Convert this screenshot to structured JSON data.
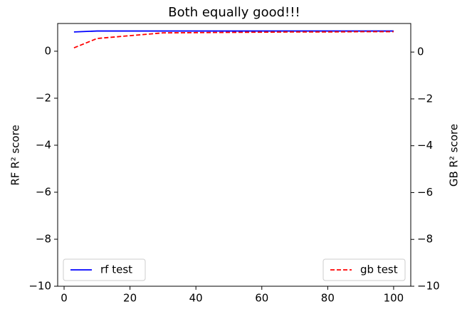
{
  "chart_data": {
    "type": "line",
    "title": "Both equally good!!!",
    "y_label": "RF R² score",
    "y2_label": "GB R² score",
    "x": [
      3,
      10,
      20,
      30,
      40,
      50,
      60,
      70,
      80,
      90,
      100
    ],
    "series": [
      {
        "name": "rf test",
        "color": "#0000ff",
        "linestyle": "solid",
        "axis": "y",
        "legend": "lower left",
        "values": [
          0.82,
          0.86,
          0.86,
          0.86,
          0.86,
          0.86,
          0.86,
          0.86,
          0.86,
          0.86,
          0.86
        ]
      },
      {
        "name": "gb test",
        "color": "#ff0000",
        "linestyle": "dashed",
        "axis": "y2",
        "legend": "lower right",
        "values": [
          0.18,
          0.58,
          0.7,
          0.82,
          0.83,
          0.84,
          0.85,
          0.86,
          0.86,
          0.87,
          0.87
        ]
      }
    ],
    "xlim": [
      -1.95,
      105.2
    ],
    "xticks": [
      0,
      20,
      40,
      60,
      80,
      100
    ],
    "ylim": [
      -10,
      1.18
    ],
    "yticks": [
      {
        "value": -10,
        "label": "−10"
      },
      {
        "value": -8,
        "label": "−8"
      },
      {
        "value": -6,
        "label": "−6"
      },
      {
        "value": -4,
        "label": "−4"
      },
      {
        "value": -2,
        "label": "−2"
      },
      0
    ],
    "y2lim": [
      -10,
      1.22
    ],
    "y2ticks": [
      {
        "value": -10,
        "label": "−10"
      },
      {
        "value": -8,
        "label": "−8"
      },
      {
        "value": -6,
        "label": "−6"
      },
      {
        "value": -4,
        "label": "−4"
      },
      {
        "value": -2,
        "label": "−2"
      },
      0
    ]
  }
}
